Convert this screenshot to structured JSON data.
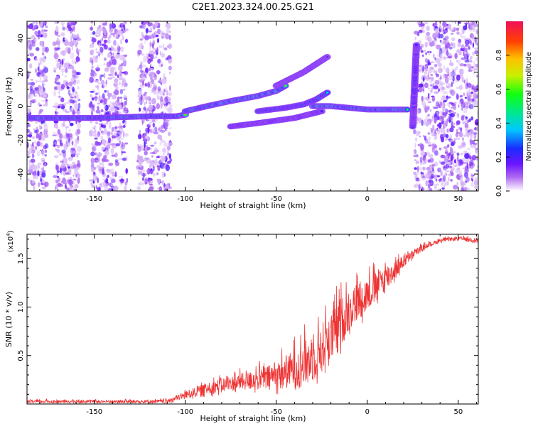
{
  "title": "C2E1.2023.324.00.25.G21",
  "chart_data": [
    {
      "type": "heatmap",
      "xlabel": "Height of straight line (km)",
      "ylabel": "Frequency (Hz)",
      "xlim": [
        -187,
        61
      ],
      "ylim": [
        -50,
        50
      ],
      "xticks": [
        -150,
        -100,
        -50,
        0,
        50
      ],
      "yticks": [
        -40,
        -20,
        0,
        20,
        40
      ],
      "colorbar": {
        "label": "Normalized spectral amplitude",
        "range": [
          0,
          1
        ],
        "ticks": [
          "0.0",
          "0.2",
          "0.4",
          "0.6",
          "0.8"
        ]
      },
      "noise_regions": [
        [
          -187,
          -176
        ],
        [
          -172,
          -158
        ],
        [
          -152,
          -132
        ],
        [
          -126,
          -108
        ],
        [
          26,
          61
        ]
      ],
      "ridges": [
        {
          "x": [
            -187,
            -150,
            -120,
            -105,
            -100
          ],
          "y": [
            -7,
            -7,
            -6,
            -6,
            -5
          ],
          "peak": 0.8
        },
        {
          "x": [
            -100,
            -88,
            -75,
            -60,
            -50,
            -45
          ],
          "y": [
            -3,
            0,
            3,
            6,
            9,
            12
          ],
          "peak": 0.85
        },
        {
          "x": [
            -60,
            -45,
            -35,
            -28,
            -22
          ],
          "y": [
            -3,
            -1,
            1,
            4,
            8
          ],
          "peak": 0.65
        },
        {
          "x": [
            -30,
            -20,
            -10,
            0,
            10,
            22
          ],
          "y": [
            0,
            0,
            -1,
            -2,
            -2,
            -2
          ],
          "peak": 0.9
        },
        {
          "x": [
            -75,
            -60,
            -40,
            -25
          ],
          "y": [
            -12,
            -10,
            -7,
            -3
          ],
          "peak": 0.35
        },
        {
          "x": [
            -50,
            -35,
            -22
          ],
          "y": [
            12,
            20,
            29
          ],
          "peak": 0.25
        },
        {
          "x": [
            25,
            25.5,
            26,
            26.5,
            27
          ],
          "y": [
            -12,
            0,
            10,
            25,
            36
          ],
          "peak": 0.35
        }
      ]
    },
    {
      "type": "line",
      "xlabel": "Height of straight line (km)",
      "ylabel": "SNR (10 * v/v)",
      "yscale_label": "(x10",
      "yscale_exponent": "4",
      "xlim": [
        -187,
        61
      ],
      "ylim": [
        0,
        1.75
      ],
      "xticks": [
        -150,
        -100,
        -50,
        0,
        50
      ],
      "yticks": [
        0.5,
        1.0,
        1.5
      ],
      "ytick_labels": [
        "0.5",
        "1.0",
        "1.5"
      ],
      "color": "#ee3333",
      "envelope": {
        "x": [
          -187,
          -150,
          -110,
          -100,
          -90,
          -80,
          -70,
          -60,
          -50,
          -40,
          -30,
          -20,
          -15,
          -10,
          -5,
          0,
          10,
          20,
          30,
          40,
          50,
          61
        ],
        "base": [
          0.02,
          0.02,
          0.02,
          0.08,
          0.13,
          0.17,
          0.2,
          0.22,
          0.25,
          0.3,
          0.4,
          0.6,
          0.75,
          0.9,
          1.0,
          1.08,
          1.25,
          1.45,
          1.6,
          1.68,
          1.7,
          1.68
        ],
        "amplitude": [
          0.03,
          0.03,
          0.04,
          0.08,
          0.12,
          0.15,
          0.17,
          0.22,
          0.28,
          0.4,
          0.5,
          0.55,
          0.5,
          0.45,
          0.4,
          0.35,
          0.3,
          0.12,
          0.06,
          0.04,
          0.04,
          0.05
        ]
      }
    }
  ]
}
